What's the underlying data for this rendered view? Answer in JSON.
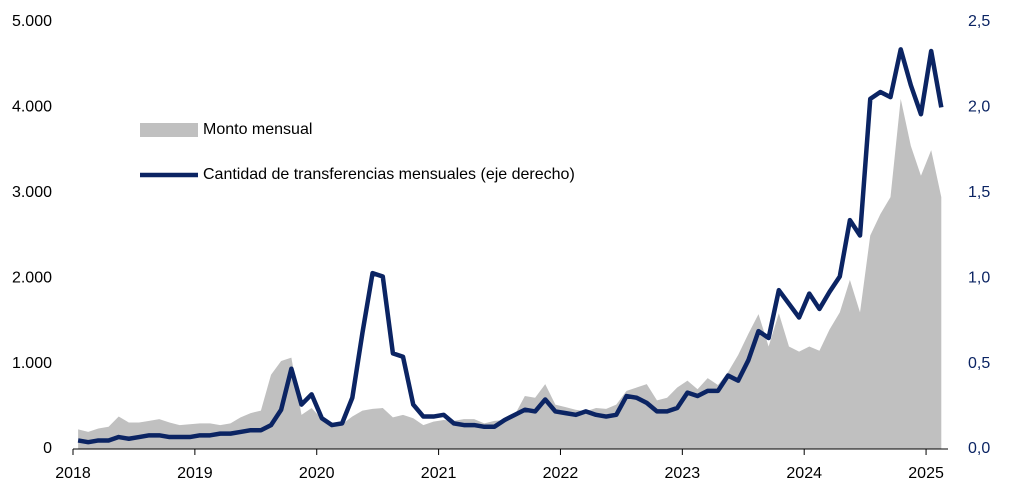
{
  "chart_data": {
    "type": "area_line",
    "x": [
      2018.042,
      2018.125,
      2018.208,
      2018.292,
      2018.375,
      2018.458,
      2018.542,
      2018.625,
      2018.708,
      2018.792,
      2018.875,
      2018.958,
      2019.042,
      2019.125,
      2019.208,
      2019.292,
      2019.375,
      2019.458,
      2019.542,
      2019.625,
      2019.708,
      2019.792,
      2019.875,
      2019.958,
      2020.042,
      2020.125,
      2020.208,
      2020.292,
      2020.375,
      2020.458,
      2020.542,
      2020.625,
      2020.708,
      2020.792,
      2020.875,
      2020.958,
      2021.042,
      2021.125,
      2021.208,
      2021.292,
      2021.375,
      2021.458,
      2021.542,
      2021.625,
      2021.708,
      2021.792,
      2021.875,
      2021.958,
      2022.042,
      2022.125,
      2022.208,
      2022.292,
      2022.375,
      2022.458,
      2022.542,
      2022.625,
      2022.708,
      2022.792,
      2022.875,
      2022.958,
      2023.042,
      2023.125,
      2023.208,
      2023.292,
      2023.375,
      2023.458,
      2023.542,
      2023.625,
      2023.708,
      2023.792,
      2023.875,
      2023.958,
      2024.042,
      2024.125,
      2024.208,
      2024.292,
      2024.375,
      2024.458,
      2024.542,
      2024.625,
      2024.708,
      2024.792,
      2024.875,
      2024.958,
      2025.042,
      2025.125
    ],
    "series": [
      {
        "name": "Monto mensual",
        "color": "#c0c0c0",
        "kind": "area",
        "axis": "y",
        "values": [
          230,
          200,
          240,
          260,
          380,
          310,
          310,
          330,
          350,
          310,
          280,
          290,
          300,
          300,
          280,
          300,
          370,
          420,
          450,
          870,
          1030,
          1070,
          400,
          480,
          350,
          280,
          290,
          380,
          450,
          470,
          480,
          370,
          400,
          360,
          280,
          320,
          340,
          330,
          350,
          350,
          300,
          330,
          340,
          400,
          620,
          600,
          760,
          520,
          490,
          460,
          440,
          480,
          470,
          520,
          680,
          720,
          760,
          570,
          600,
          720,
          800,
          700,
          830,
          750,
          900,
          1100,
          1350,
          1580,
          1200,
          1590,
          1200,
          1140,
          1200,
          1150,
          1400,
          1600,
          1980,
          1600,
          2500,
          2750,
          2950,
          4100,
          3550,
          3200,
          3500,
          2950
        ]
      },
      {
        "name": "Cantidad de transferencias mensuales (eje derecho)",
        "color": "#0b2463",
        "kind": "line",
        "axis": "y2",
        "values": [
          0.05,
          0.04,
          0.05,
          0.05,
          0.07,
          0.06,
          0.07,
          0.08,
          0.08,
          0.07,
          0.07,
          0.07,
          0.08,
          0.08,
          0.09,
          0.09,
          0.1,
          0.11,
          0.11,
          0.14,
          0.23,
          0.47,
          0.26,
          0.32,
          0.18,
          0.14,
          0.15,
          0.3,
          0.68,
          1.03,
          1.01,
          0.56,
          0.54,
          0.26,
          0.19,
          0.19,
          0.2,
          0.15,
          0.14,
          0.14,
          0.13,
          0.13,
          0.17,
          0.2,
          0.23,
          0.22,
          0.29,
          0.22,
          0.21,
          0.2,
          0.22,
          0.2,
          0.19,
          0.2,
          0.31,
          0.3,
          0.27,
          0.22,
          0.22,
          0.24,
          0.33,
          0.31,
          0.34,
          0.34,
          0.43,
          0.4,
          0.52,
          0.69,
          0.65,
          0.93,
          0.85,
          0.77,
          0.91,
          0.82,
          0.92,
          1.01,
          1.34,
          1.25,
          2.05,
          2.09,
          2.06,
          2.34,
          2.13,
          1.96,
          2.33,
          2.0
        ]
      }
    ],
    "xlim": [
      2018,
      2025.18
    ],
    "xticks": [
      2018,
      2019,
      2020,
      2021,
      2022,
      2023,
      2024,
      2025
    ],
    "ylim": [
      0,
      5000
    ],
    "yticks": [
      0,
      {
        "value": 1000,
        "label": "1.000"
      },
      {
        "value": 2000,
        "label": "2.000"
      },
      {
        "value": 3000,
        "label": "3.000"
      },
      {
        "value": 4000,
        "label": "4.000"
      },
      {
        "value": 5000,
        "label": "5.000"
      }
    ],
    "y2lim": [
      0,
      2.5
    ],
    "y2ticks": [
      {
        "value": 0,
        "label": "0,0"
      },
      {
        "value": 0.5,
        "label": "0,5"
      },
      {
        "value": 1,
        "label": "1,0"
      },
      {
        "value": 1.5,
        "label": "1,5"
      },
      {
        "value": 2,
        "label": "2,0"
      },
      {
        "value": 2.5,
        "label": "2,5"
      }
    ],
    "y2_color": "#0b2463"
  }
}
